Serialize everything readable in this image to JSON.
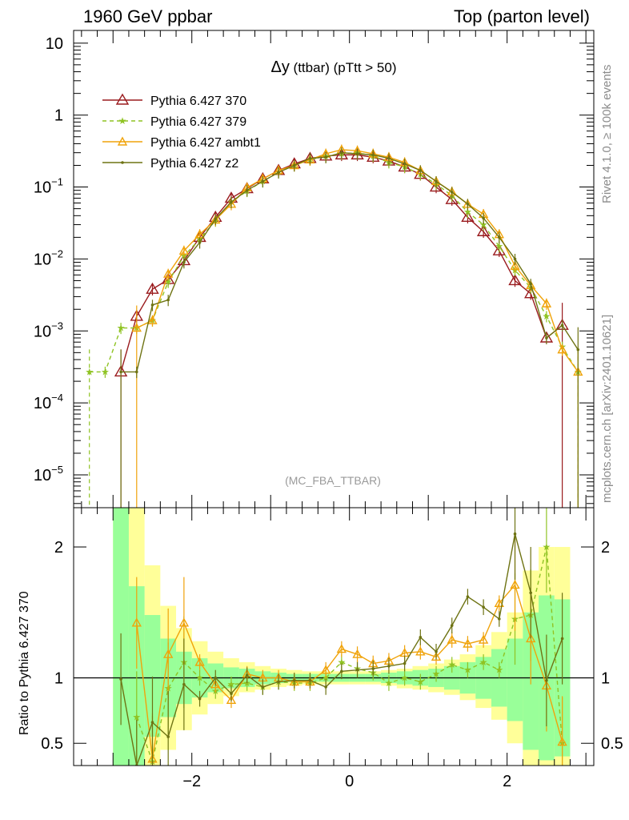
{
  "header": {
    "left": "1960 GeV ppbar",
    "right": "Top (parton level)"
  },
  "side_labels": {
    "rivet": "Rivet 4.1.0, ≥ 100k events",
    "mcplots": "mcplots.cern.ch [arXiv:2401.10621]"
  },
  "chart_data": {
    "type": "line",
    "title_symbol": "Δy",
    "title_rest": " (ttbar) (pTtt > 50)",
    "watermark": "(MC_FBA_TTBAR)",
    "ratio_ylabel": "Ratio to Pythia 6.427 370",
    "xlim": [
      -3.5,
      3.1
    ],
    "ylim_main": [
      3.5e-06,
      15
    ],
    "ylim_ratio": [
      0.33,
      2.3
    ],
    "x_ticks": [
      -2,
      0,
      2
    ],
    "x_tick_labels": [
      "−2",
      "0",
      "2"
    ],
    "y_ticks_main": [
      {
        "base": "10",
        "exp": "",
        "value": 10
      },
      {
        "base": "1",
        "exp": "",
        "value": 1
      },
      {
        "base": "10",
        "exp": "−1",
        "value": 0.1
      },
      {
        "base": "10",
        "exp": "−2",
        "value": 0.01
      },
      {
        "base": "10",
        "exp": "−3",
        "value": 0.001
      },
      {
        "base": "10",
        "exp": "−4",
        "value": 0.0001
      },
      {
        "base": "10",
        "exp": "−5",
        "value": 1e-05
      }
    ],
    "y_ticks_ratio": [
      {
        "label": "2",
        "value": 2
      },
      {
        "label": "1",
        "value": 1
      },
      {
        "label": "0.5",
        "value": 0.5
      }
    ],
    "legend": [
      {
        "name": "Pythia 6.427 370",
        "color": "#9a1b1e"
      },
      {
        "name": "Pythia 6.427 379",
        "color": "#8fc323"
      },
      {
        "name": "Pythia 6.427 ambt1",
        "color": "#f0a30a"
      },
      {
        "name": "Pythia 6.427 z2",
        "color": "#6e7313"
      }
    ],
    "band_colors": {
      "outer": "#ffff99",
      "inner": "#99ff99"
    },
    "series": [
      {
        "name": "Pythia 6.427 370",
        "x": [
          -2.9,
          -2.7,
          -2.5,
          -2.3,
          -2.1,
          -1.9,
          -1.7,
          -1.5,
          -1.3,
          -1.1,
          -0.9,
          -0.7,
          -0.5,
          -0.3,
          -0.1,
          0.1,
          0.3,
          0.5,
          0.7,
          0.9,
          1.1,
          1.3,
          1.5,
          1.7,
          1.9,
          2.1,
          2.3,
          2.5,
          2.7
        ],
        "y": [
          0.00027,
          0.0016,
          0.0038,
          0.0052,
          0.0095,
          0.02,
          0.038,
          0.07,
          0.095,
          0.13,
          0.17,
          0.21,
          0.25,
          0.27,
          0.28,
          0.28,
          0.26,
          0.23,
          0.19,
          0.15,
          0.1,
          0.067,
          0.038,
          0.024,
          0.013,
          0.005,
          0.0033,
          0.0008,
          0.0012
        ]
      },
      {
        "name": "Pythia 6.427 379",
        "x": [
          -3.3,
          -3.1,
          -2.9,
          -2.7,
          -2.5,
          -2.3,
          -2.1,
          -1.9,
          -1.7,
          -1.5,
          -1.3,
          -1.1,
          -0.9,
          -0.7,
          -0.5,
          -0.3,
          -0.1,
          0.1,
          0.3,
          0.5,
          0.7,
          0.9,
          1.1,
          1.3,
          1.5,
          1.7,
          1.9,
          2.1,
          2.3,
          2.5,
          2.7,
          2.9
        ],
        "y": [
          0.00027,
          0.00027,
          0.0011,
          0.0011,
          0.0014,
          0.0048,
          0.011,
          0.019,
          0.034,
          0.062,
          0.088,
          0.12,
          0.16,
          0.2,
          0.24,
          0.27,
          0.29,
          0.3,
          0.27,
          0.22,
          0.19,
          0.15,
          0.11,
          0.076,
          0.045,
          0.03,
          0.015,
          0.007,
          0.004,
          0.0016,
          0.0006,
          0.00027
        ]
      },
      {
        "name": "Pythia 6.427 ambt1",
        "x": [
          -2.7,
          -2.5,
          -2.3,
          -2.1,
          -1.9,
          -1.7,
          -1.5,
          -1.3,
          -1.1,
          -0.9,
          -0.7,
          -0.5,
          -0.3,
          -0.1,
          0.1,
          0.3,
          0.5,
          0.7,
          0.9,
          1.1,
          1.3,
          1.5,
          1.7,
          1.9,
          2.1,
          2.3,
          2.5,
          2.7,
          2.9
        ],
        "y": [
          0.0011,
          0.0014,
          0.0062,
          0.013,
          0.022,
          0.035,
          0.058,
          0.098,
          0.13,
          0.17,
          0.2,
          0.24,
          0.29,
          0.33,
          0.32,
          0.29,
          0.26,
          0.22,
          0.17,
          0.12,
          0.086,
          0.058,
          0.042,
          0.022,
          0.008,
          0.0043,
          0.0024,
          0.00055,
          0.00027
        ]
      },
      {
        "name": "Pythia 6.427 z2",
        "x": [
          -2.9,
          -2.7,
          -2.5,
          -2.3,
          -2.1,
          -1.9,
          -1.7,
          -1.5,
          -1.3,
          -1.1,
          -0.9,
          -0.7,
          -0.5,
          -0.3,
          -0.1,
          0.1,
          0.3,
          0.5,
          0.7,
          0.9,
          1.1,
          1.3,
          1.5,
          1.7,
          1.9,
          2.1,
          2.3,
          2.5,
          2.7,
          2.9
        ],
        "y": [
          0.00027,
          0.00027,
          0.0023,
          0.0027,
          0.009,
          0.017,
          0.036,
          0.062,
          0.09,
          0.12,
          0.16,
          0.2,
          0.25,
          0.26,
          0.3,
          0.29,
          0.28,
          0.25,
          0.21,
          0.17,
          0.12,
          0.085,
          0.058,
          0.037,
          0.02,
          0.01,
          0.0045,
          0.0008,
          0.0012,
          0.00055
        ]
      }
    ],
    "ratio_series": [
      {
        "name": "Pythia 6.427 379",
        "x": [
          -2.7,
          -2.5,
          -2.3,
          -2.1,
          -1.9,
          -1.7,
          -1.5,
          -1.3,
          -1.1,
          -0.9,
          -0.7,
          -0.5,
          -0.3,
          -0.1,
          0.1,
          0.3,
          0.5,
          0.7,
          0.9,
          1.1,
          1.3,
          1.5,
          1.7,
          1.9,
          2.1,
          2.3,
          2.5,
          2.7
        ],
        "y": [
          0.7,
          0.36,
          0.92,
          1.12,
          1.0,
          0.9,
          0.95,
          0.96,
          0.93,
          0.97,
          0.96,
          0.96,
          1.0,
          1.12,
          1.07,
          1.04,
          0.96,
          1.0,
          0.97,
          1.03,
          1.1,
          1.06,
          1.12,
          1.06,
          1.45,
          1.48,
          2.0,
          0.5
        ]
      },
      {
        "name": "Pythia 6.427 ambt1",
        "x": [
          -2.7,
          -2.5,
          -2.3,
          -2.1,
          -1.9,
          -1.7,
          -1.5,
          -1.3,
          -1.1,
          -0.9,
          -0.7,
          -0.5,
          -0.3,
          -0.1,
          0.1,
          0.3,
          0.5,
          0.7,
          0.9,
          1.1,
          1.3,
          1.5,
          1.7,
          1.9,
          2.1,
          2.3,
          2.5,
          2.7
        ],
        "y": [
          1.42,
          0.38,
          1.18,
          1.42,
          1.12,
          0.95,
          0.83,
          1.03,
          1.0,
          1.0,
          0.97,
          0.97,
          1.06,
          1.22,
          1.18,
          1.11,
          1.13,
          1.19,
          1.2,
          1.16,
          1.29,
          1.26,
          1.29,
          1.57,
          1.71,
          1.3,
          0.94,
          0.51
        ]
      },
      {
        "name": "Pythia 6.427 z2",
        "x": [
          -2.9,
          -2.7,
          -2.5,
          -2.3,
          -2.1,
          -1.9,
          -1.7,
          -1.5,
          -1.3,
          -1.1,
          -0.9,
          -0.7,
          -0.5,
          -0.3,
          -0.1,
          0.1,
          0.3,
          0.5,
          0.7,
          0.9,
          1.1,
          1.3,
          1.5,
          1.7,
          1.9,
          2.1,
          2.3,
          2.5,
          2.7
        ],
        "y": [
          0.99,
          0.33,
          0.66,
          0.55,
          0.95,
          0.84,
          1.0,
          0.88,
          1.02,
          0.93,
          0.97,
          0.98,
          0.98,
          0.93,
          1.05,
          1.06,
          1.07,
          1.09,
          1.11,
          1.31,
          1.2,
          1.4,
          1.62,
          1.54,
          1.45,
          2.1,
          1.65,
          0.98,
          1.3
        ]
      }
    ],
    "ratio_bands": {
      "x_edges": [
        -3.0,
        -2.8,
        -2.6,
        -2.4,
        -2.2,
        -2.0,
        -1.8,
        -1.6,
        -1.4,
        -1.2,
        -1.0,
        -0.8,
        -0.6,
        -0.4,
        -0.2,
        0.0,
        0.2,
        0.4,
        0.6,
        0.8,
        1.0,
        1.2,
        1.4,
        1.6,
        1.8,
        2.0,
        2.2,
        2.4,
        2.6,
        2.8
      ],
      "inner_low": [
        0.3,
        0.3,
        0.55,
        0.7,
        0.8,
        0.85,
        0.89,
        0.92,
        0.93,
        0.95,
        0.96,
        0.97,
        0.97,
        0.97,
        0.97,
        0.97,
        0.97,
        0.96,
        0.95,
        0.94,
        0.93,
        0.91,
        0.88,
        0.84,
        0.78,
        0.67,
        0.45,
        0.37,
        0.4
      ],
      "inner_high": [
        2.3,
        1.7,
        1.48,
        1.3,
        1.2,
        1.15,
        1.11,
        1.08,
        1.07,
        1.05,
        1.04,
        1.03,
        1.03,
        1.03,
        1.03,
        1.03,
        1.03,
        1.04,
        1.05,
        1.06,
        1.07,
        1.09,
        1.12,
        1.16,
        1.22,
        1.3,
        1.5,
        1.63,
        1.6
      ],
      "outer_low": [
        0.3,
        0.3,
        0.3,
        0.45,
        0.6,
        0.72,
        0.8,
        0.86,
        0.89,
        0.91,
        0.93,
        0.94,
        0.95,
        0.95,
        0.95,
        0.95,
        0.95,
        0.94,
        0.92,
        0.91,
        0.89,
        0.87,
        0.83,
        0.77,
        0.68,
        0.5,
        0.33,
        0.3,
        0.3
      ],
      "outer_high": [
        2.3,
        2.3,
        1.86,
        1.55,
        1.38,
        1.28,
        1.2,
        1.15,
        1.12,
        1.09,
        1.07,
        1.06,
        1.05,
        1.05,
        1.05,
        1.05,
        1.05,
        1.06,
        1.07,
        1.09,
        1.11,
        1.14,
        1.18,
        1.25,
        1.35,
        1.5,
        1.82,
        2.0,
        2.0
      ]
    }
  }
}
